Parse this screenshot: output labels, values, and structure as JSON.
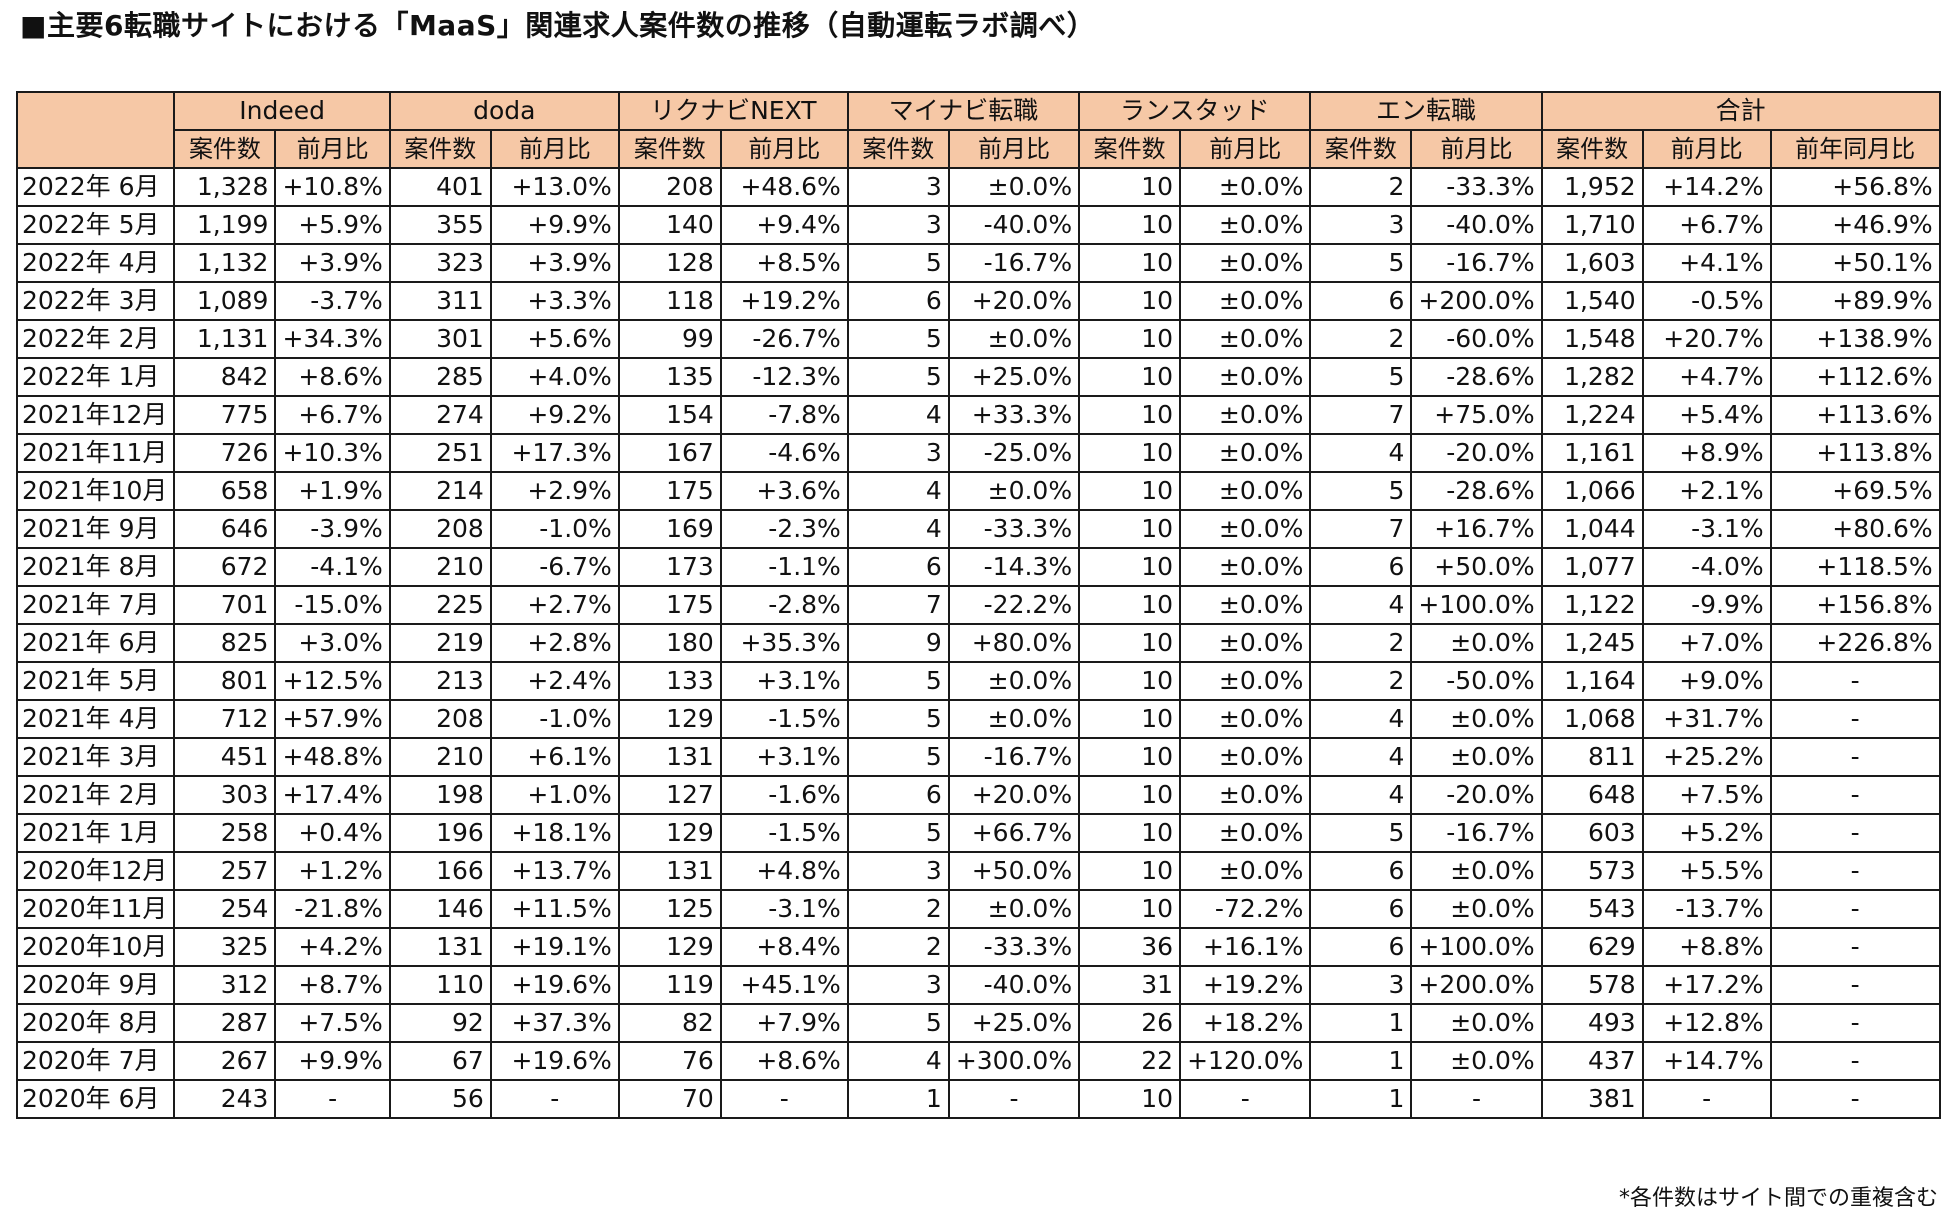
{
  "title": "■主要6転職サイトにおける「MaaS」関連求人案件数の推移（自動運転ラボ調べ）",
  "footnote": "*各件数はサイト間での重複含む",
  "colors": {
    "header_bg": "#f6c8a6",
    "border": "#1a1a1a"
  },
  "chart_data": {
    "type": "table",
    "sites": [
      "Indeed",
      "doda",
      "リクナビNEXT",
      "マイナビ転職",
      "ランスタッド",
      "エン転職",
      "合計"
    ],
    "subheaders": {
      "count": "案件数",
      "mom": "前月比",
      "yoy": "前年同月比"
    },
    "rows": [
      {
        "month": "2022年 6月",
        "cells": [
          "1,328",
          "+10.8%",
          "401",
          "+13.0%",
          "208",
          "+48.6%",
          "3",
          "±0.0%",
          "10",
          "±0.0%",
          "2",
          "-33.3%",
          "1,952",
          "+14.2%",
          "+56.8%"
        ]
      },
      {
        "month": "2022年 5月",
        "cells": [
          "1,199",
          "+5.9%",
          "355",
          "+9.9%",
          "140",
          "+9.4%",
          "3",
          "-40.0%",
          "10",
          "±0.0%",
          "3",
          "-40.0%",
          "1,710",
          "+6.7%",
          "+46.9%"
        ]
      },
      {
        "month": "2022年 4月",
        "cells": [
          "1,132",
          "+3.9%",
          "323",
          "+3.9%",
          "128",
          "+8.5%",
          "5",
          "-16.7%",
          "10",
          "±0.0%",
          "5",
          "-16.7%",
          "1,603",
          "+4.1%",
          "+50.1%"
        ]
      },
      {
        "month": "2022年 3月",
        "cells": [
          "1,089",
          "-3.7%",
          "311",
          "+3.3%",
          "118",
          "+19.2%",
          "6",
          "+20.0%",
          "10",
          "±0.0%",
          "6",
          "+200.0%",
          "1,540",
          "-0.5%",
          "+89.9%"
        ]
      },
      {
        "month": "2022年 2月",
        "cells": [
          "1,131",
          "+34.3%",
          "301",
          "+5.6%",
          "99",
          "-26.7%",
          "5",
          "±0.0%",
          "10",
          "±0.0%",
          "2",
          "-60.0%",
          "1,548",
          "+20.7%",
          "+138.9%"
        ]
      },
      {
        "month": "2022年 1月",
        "cells": [
          "842",
          "+8.6%",
          "285",
          "+4.0%",
          "135",
          "-12.3%",
          "5",
          "+25.0%",
          "10",
          "±0.0%",
          "5",
          "-28.6%",
          "1,282",
          "+4.7%",
          "+112.6%"
        ]
      },
      {
        "month": "2021年12月",
        "cells": [
          "775",
          "+6.7%",
          "274",
          "+9.2%",
          "154",
          "-7.8%",
          "4",
          "+33.3%",
          "10",
          "±0.0%",
          "7",
          "+75.0%",
          "1,224",
          "+5.4%",
          "+113.6%"
        ]
      },
      {
        "month": "2021年11月",
        "cells": [
          "726",
          "+10.3%",
          "251",
          "+17.3%",
          "167",
          "-4.6%",
          "3",
          "-25.0%",
          "10",
          "±0.0%",
          "4",
          "-20.0%",
          "1,161",
          "+8.9%",
          "+113.8%"
        ]
      },
      {
        "month": "2021年10月",
        "cells": [
          "658",
          "+1.9%",
          "214",
          "+2.9%",
          "175",
          "+3.6%",
          "4",
          "±0.0%",
          "10",
          "±0.0%",
          "5",
          "-28.6%",
          "1,066",
          "+2.1%",
          "+69.5%"
        ]
      },
      {
        "month": "2021年 9月",
        "cells": [
          "646",
          "-3.9%",
          "208",
          "-1.0%",
          "169",
          "-2.3%",
          "4",
          "-33.3%",
          "10",
          "±0.0%",
          "7",
          "+16.7%",
          "1,044",
          "-3.1%",
          "+80.6%"
        ]
      },
      {
        "month": "2021年 8月",
        "cells": [
          "672",
          "-4.1%",
          "210",
          "-6.7%",
          "173",
          "-1.1%",
          "6",
          "-14.3%",
          "10",
          "±0.0%",
          "6",
          "+50.0%",
          "1,077",
          "-4.0%",
          "+118.5%"
        ]
      },
      {
        "month": "2021年 7月",
        "cells": [
          "701",
          "-15.0%",
          "225",
          "+2.7%",
          "175",
          "-2.8%",
          "7",
          "-22.2%",
          "10",
          "±0.0%",
          "4",
          "+100.0%",
          "1,122",
          "-9.9%",
          "+156.8%"
        ]
      },
      {
        "month": "2021年 6月",
        "cells": [
          "825",
          "+3.0%",
          "219",
          "+2.8%",
          "180",
          "+35.3%",
          "9",
          "+80.0%",
          "10",
          "±0.0%",
          "2",
          "±0.0%",
          "1,245",
          "+7.0%",
          "+226.8%"
        ]
      },
      {
        "month": "2021年 5月",
        "cells": [
          "801",
          "+12.5%",
          "213",
          "+2.4%",
          "133",
          "+3.1%",
          "5",
          "±0.0%",
          "10",
          "±0.0%",
          "2",
          "-50.0%",
          "1,164",
          "+9.0%",
          "-"
        ]
      },
      {
        "month": "2021年 4月",
        "cells": [
          "712",
          "+57.9%",
          "208",
          "-1.0%",
          "129",
          "-1.5%",
          "5",
          "±0.0%",
          "10",
          "±0.0%",
          "4",
          "±0.0%",
          "1,068",
          "+31.7%",
          "-"
        ]
      },
      {
        "month": "2021年 3月",
        "cells": [
          "451",
          "+48.8%",
          "210",
          "+6.1%",
          "131",
          "+3.1%",
          "5",
          "-16.7%",
          "10",
          "±0.0%",
          "4",
          "±0.0%",
          "811",
          "+25.2%",
          "-"
        ]
      },
      {
        "month": "2021年 2月",
        "cells": [
          "303",
          "+17.4%",
          "198",
          "+1.0%",
          "127",
          "-1.6%",
          "6",
          "+20.0%",
          "10",
          "±0.0%",
          "4",
          "-20.0%",
          "648",
          "+7.5%",
          "-"
        ]
      },
      {
        "month": "2021年 1月",
        "cells": [
          "258",
          "+0.4%",
          "196",
          "+18.1%",
          "129",
          "-1.5%",
          "5",
          "+66.7%",
          "10",
          "±0.0%",
          "5",
          "-16.7%",
          "603",
          "+5.2%",
          "-"
        ]
      },
      {
        "month": "2020年12月",
        "cells": [
          "257",
          "+1.2%",
          "166",
          "+13.7%",
          "131",
          "+4.8%",
          "3",
          "+50.0%",
          "10",
          "±0.0%",
          "6",
          "±0.0%",
          "573",
          "+5.5%",
          "-"
        ]
      },
      {
        "month": "2020年11月",
        "cells": [
          "254",
          "-21.8%",
          "146",
          "+11.5%",
          "125",
          "-3.1%",
          "2",
          "±0.0%",
          "10",
          "-72.2%",
          "6",
          "±0.0%",
          "543",
          "-13.7%",
          "-"
        ]
      },
      {
        "month": "2020年10月",
        "cells": [
          "325",
          "+4.2%",
          "131",
          "+19.1%",
          "129",
          "+8.4%",
          "2",
          "-33.3%",
          "36",
          "+16.1%",
          "6",
          "+100.0%",
          "629",
          "+8.8%",
          "-"
        ]
      },
      {
        "month": "2020年 9月",
        "cells": [
          "312",
          "+8.7%",
          "110",
          "+19.6%",
          "119",
          "+45.1%",
          "3",
          "-40.0%",
          "31",
          "+19.2%",
          "3",
          "+200.0%",
          "578",
          "+17.2%",
          "-"
        ]
      },
      {
        "month": "2020年 8月",
        "cells": [
          "287",
          "+7.5%",
          "92",
          "+37.3%",
          "82",
          "+7.9%",
          "5",
          "+25.0%",
          "26",
          "+18.2%",
          "1",
          "±0.0%",
          "493",
          "+12.8%",
          "-"
        ]
      },
      {
        "month": "2020年 7月",
        "cells": [
          "267",
          "+9.9%",
          "67",
          "+19.6%",
          "76",
          "+8.6%",
          "4",
          "+300.0%",
          "22",
          "+120.0%",
          "1",
          "±0.0%",
          "437",
          "+14.7%",
          "-"
        ]
      },
      {
        "month": "2020年 6月",
        "cells": [
          "243",
          "-",
          "56",
          "-",
          "70",
          "-",
          "1",
          "-",
          "10",
          "-",
          "1",
          "-",
          "381",
          "-",
          "-"
        ]
      }
    ]
  }
}
